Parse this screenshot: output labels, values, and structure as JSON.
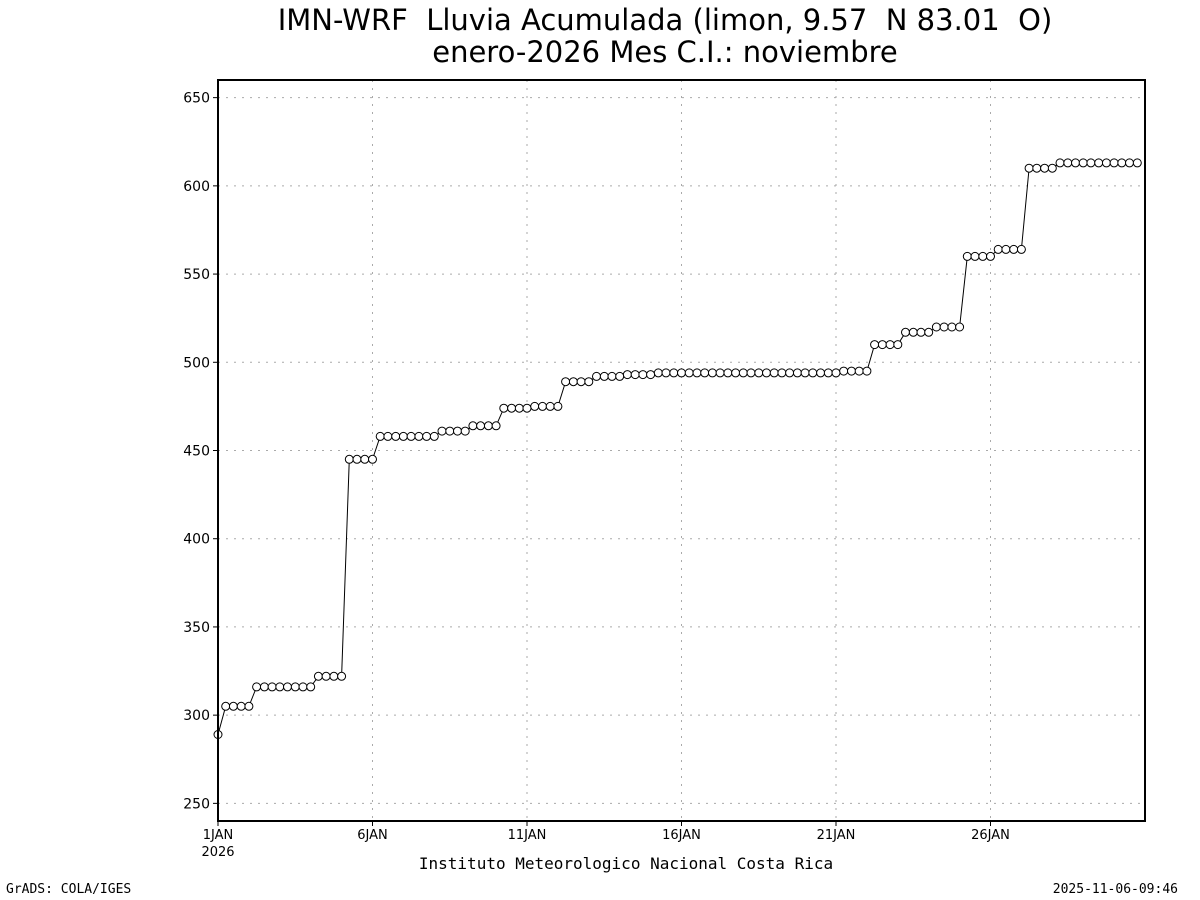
{
  "chart_data": {
    "type": "line",
    "title": "IMN-WRF  Lluvia Acumulada (limon, 9.57  N 83.01  O)",
    "subtitle": "enero-2026 Mes C.I.: noviembre",
    "xlabel": "Instituto Meteorologico Nacional Costa Rica",
    "ylabel": "",
    "x_unit": "day of January 2026",
    "xlim": [
      1,
      31
    ],
    "ylim": [
      240,
      660
    ],
    "yticks": [
      250,
      300,
      350,
      400,
      450,
      500,
      550,
      600,
      650
    ],
    "xticks": [
      {
        "x": 1,
        "label": "1JAN",
        "sublabel": "2026"
      },
      {
        "x": 6,
        "label": "6JAN"
      },
      {
        "x": 11,
        "label": "11JAN"
      },
      {
        "x": 16,
        "label": "16JAN"
      },
      {
        "x": 21,
        "label": "21JAN"
      },
      {
        "x": 26,
        "label": "26JAN"
      }
    ],
    "grid": true,
    "marker": "open-circle",
    "step_hours": 6,
    "series": [
      {
        "values": [
          289,
          305,
          305,
          305,
          305,
          316,
          316,
          316,
          316,
          316,
          316,
          316,
          316,
          322,
          322,
          322,
          322,
          445,
          445,
          445,
          445,
          458,
          458,
          458,
          458,
          458,
          458,
          458,
          458,
          461,
          461,
          461,
          461,
          464,
          464,
          464,
          464,
          474,
          474,
          474,
          474,
          475,
          475,
          475,
          475,
          489,
          489,
          489,
          489,
          492,
          492,
          492,
          492,
          493,
          493,
          493,
          493,
          494,
          494,
          494,
          494,
          494,
          494,
          494,
          494,
          494,
          494,
          494,
          494,
          494,
          494,
          494,
          494,
          494,
          494,
          494,
          494,
          494,
          494,
          494,
          494,
          495,
          495,
          495,
          495,
          510,
          510,
          510,
          510,
          517,
          517,
          517,
          517,
          520,
          520,
          520,
          520,
          560,
          560,
          560,
          560,
          564,
          564,
          564,
          564,
          610,
          610,
          610,
          610,
          613,
          613,
          613,
          613,
          613,
          613,
          613,
          613,
          613,
          613,
          613
        ]
      }
    ]
  },
  "footer": {
    "left": "GrADS: COLA/IGES",
    "right": "2025-11-06-09:46"
  }
}
